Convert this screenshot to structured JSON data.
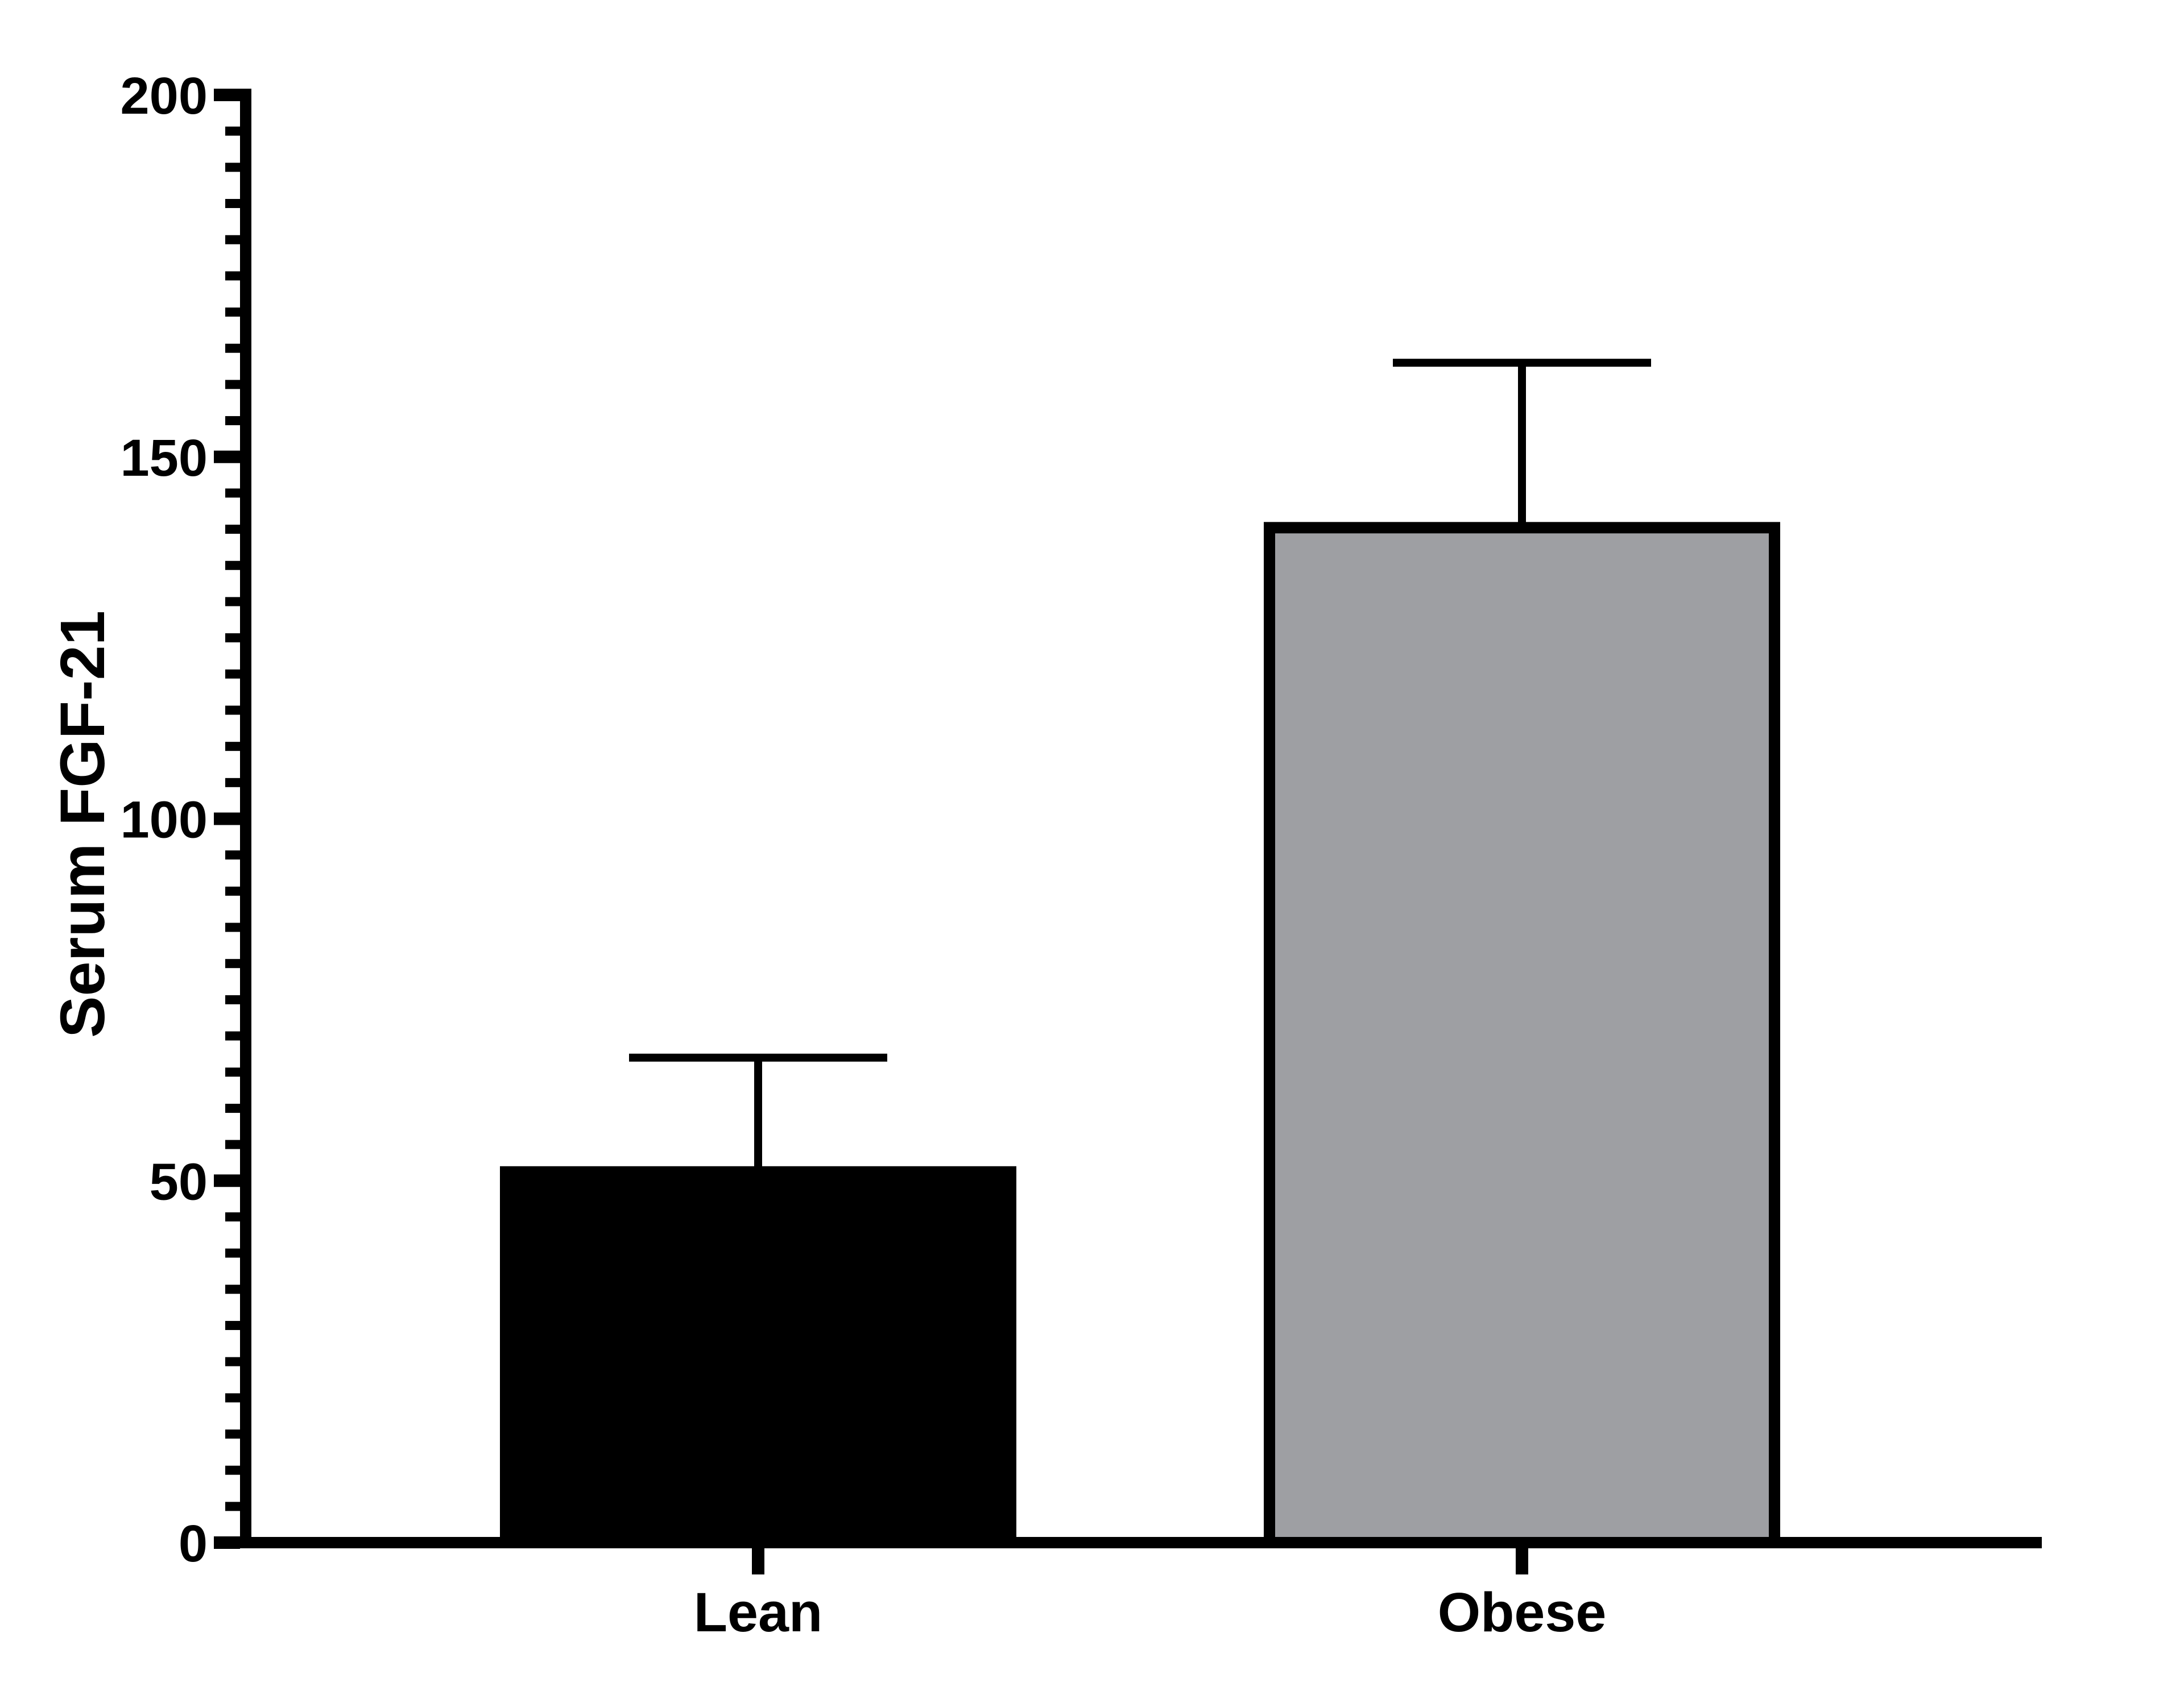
{
  "chart_data": {
    "type": "bar",
    "title": "",
    "xlabel": "",
    "ylabel": "Serum FGF-21",
    "categories": [
      "Lean",
      "Obese"
    ],
    "values": [
      52,
      141
    ],
    "errors_sem_upper": [
      15,
      22
    ],
    "error_bar_tops": [
      67,
      163
    ],
    "error_bar_direction": "upper-only",
    "ylim": [
      0,
      200
    ],
    "yticks": [
      0,
      50,
      100,
      150,
      200
    ],
    "y_minor_tick_step": 5,
    "grid": "off",
    "legend": "none",
    "bar_colors": [
      "#000000",
      "#9e9fa3"
    ],
    "bar_border_color": "#000000",
    "axis_color": "#000000",
    "background_color": "#ffffff",
    "text_color": "#000000"
  }
}
